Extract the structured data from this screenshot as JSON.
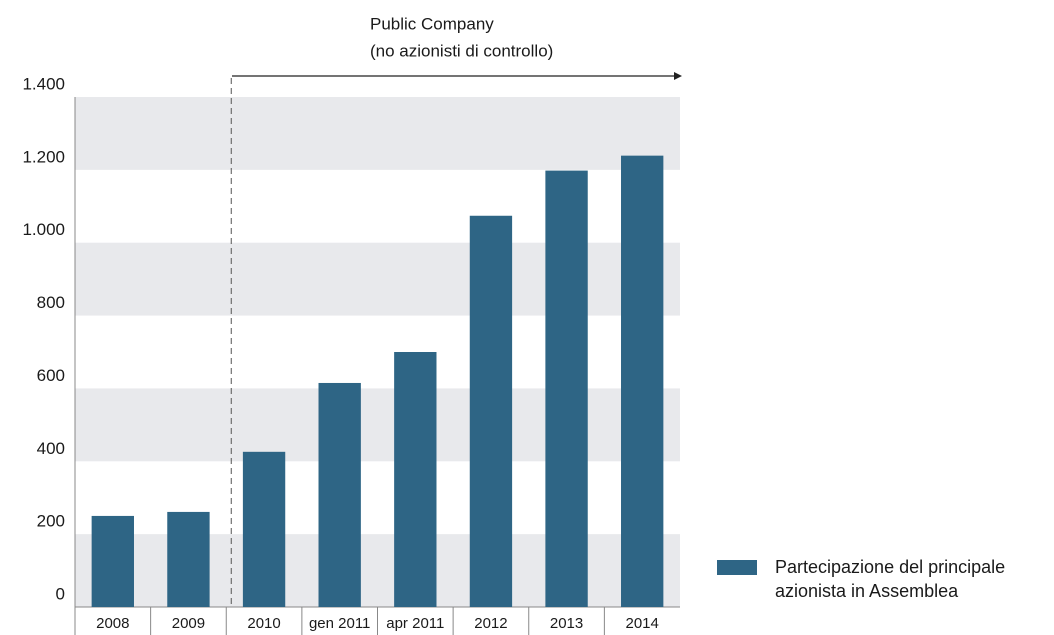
{
  "chart_data": {
    "type": "bar",
    "annotation": [
      "Public Company",
      "(no azionisti di controllo)"
    ],
    "categories": [
      "2008",
      "2009",
      "2010",
      "gen 2011",
      "apr 2011",
      "2012",
      "2013",
      "2014"
    ],
    "series": [
      {
        "name": "Partecipazione del principale azionista in Assemblea",
        "color": "#2e6585",
        "values": [
          250,
          261,
          426,
          615,
          700,
          1074,
          1198,
          1239
        ]
      }
    ],
    "ylim": [
      0,
      1400
    ],
    "yticks": [
      0,
      200,
      400,
      600,
      800,
      {
        "value": 1000,
        "label": "1.000"
      },
      {
        "value": 1200,
        "label": "1.200"
      },
      {
        "value": 1400,
        "label": "1.400"
      }
    ],
    "grid": true,
    "legend": "right"
  }
}
